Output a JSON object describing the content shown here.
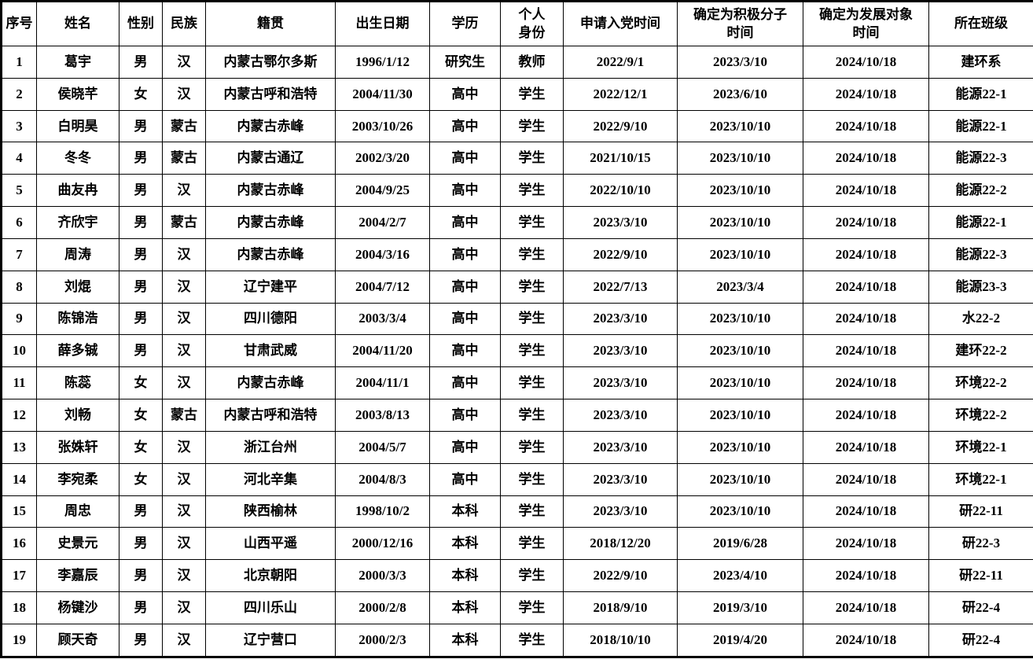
{
  "colors": {
    "background": "#ffffff",
    "text": "#000000",
    "border": "#000000"
  },
  "table": {
    "columns": [
      "序号",
      "姓名",
      "性别",
      "民族",
      "籍贯",
      "出生日期",
      "学历",
      "个人\n身份",
      "申请入党时间",
      "确定为积极分子\n时间",
      "确定为发展对象\n时间",
      "所在班级"
    ],
    "rows": [
      [
        "1",
        "葛宇",
        "男",
        "汉",
        "内蒙古鄂尔多斯",
        "1996/1/12",
        "研究生",
        "教师",
        "2022/9/1",
        "2023/3/10",
        "2024/10/18",
        "建环系"
      ],
      [
        "2",
        "侯晓芊",
        "女",
        "汉",
        "内蒙古呼和浩特",
        "2004/11/30",
        "高中",
        "学生",
        "2022/12/1",
        "2023/6/10",
        "2024/10/18",
        "能源22-1"
      ],
      [
        "3",
        "白明昊",
        "男",
        "蒙古",
        "内蒙古赤峰",
        "2003/10/26",
        "高中",
        "学生",
        "2022/9/10",
        "2023/10/10",
        "2024/10/18",
        "能源22-1"
      ],
      [
        "4",
        "冬冬",
        "男",
        "蒙古",
        "内蒙古通辽",
        "2002/3/20",
        "高中",
        "学生",
        "2021/10/15",
        "2023/10/10",
        "2024/10/18",
        "能源22-3"
      ],
      [
        "5",
        "曲友冉",
        "男",
        "汉",
        "内蒙古赤峰",
        "2004/9/25",
        "高中",
        "学生",
        "2022/10/10",
        "2023/10/10",
        "2024/10/18",
        "能源22-2"
      ],
      [
        "6",
        "齐欣宇",
        "男",
        "蒙古",
        "内蒙古赤峰",
        "2004/2/7",
        "高中",
        "学生",
        "2023/3/10",
        "2023/10/10",
        "2024/10/18",
        "能源22-1"
      ],
      [
        "7",
        "周涛",
        "男",
        "汉",
        "内蒙古赤峰",
        "2004/3/16",
        "高中",
        "学生",
        "2022/9/10",
        "2023/10/10",
        "2024/10/18",
        "能源22-3"
      ],
      [
        "8",
        "刘焜",
        "男",
        "汉",
        "辽宁建平",
        "2004/7/12",
        "高中",
        "学生",
        "2022/7/13",
        "2023/3/4",
        "2024/10/18",
        "能源23-3"
      ],
      [
        "9",
        "陈锦浩",
        "男",
        "汉",
        "四川德阳",
        "2003/3/4",
        "高中",
        "学生",
        "2023/3/10",
        "2023/10/10",
        "2024/10/18",
        "水22-2"
      ],
      [
        "10",
        "薛多铖",
        "男",
        "汉",
        "甘肃武威",
        "2004/11/20",
        "高中",
        "学生",
        "2023/3/10",
        "2023/10/10",
        "2024/10/18",
        "建环22-2"
      ],
      [
        "11",
        "陈蕊",
        "女",
        "汉",
        "内蒙古赤峰",
        "2004/11/1",
        "高中",
        "学生",
        "2023/3/10",
        "2023/10/10",
        "2024/10/18",
        "环境22-2"
      ],
      [
        "12",
        "刘畅",
        "女",
        "蒙古",
        "内蒙古呼和浩特",
        "2003/8/13",
        "高中",
        "学生",
        "2023/3/10",
        "2023/10/10",
        "2024/10/18",
        "环境22-2"
      ],
      [
        "13",
        "张姝轩",
        "女",
        "汉",
        "浙江台州",
        "2004/5/7",
        "高中",
        "学生",
        "2023/3/10",
        "2023/10/10",
        "2024/10/18",
        "环境22-1"
      ],
      [
        "14",
        "李宛柔",
        "女",
        "汉",
        "河北辛集",
        "2004/8/3",
        "高中",
        "学生",
        "2023/3/10",
        "2023/10/10",
        "2024/10/18",
        "环境22-1"
      ],
      [
        "15",
        "周忠",
        "男",
        "汉",
        "陕西榆林",
        "1998/10/2",
        "本科",
        "学生",
        "2023/3/10",
        "2023/10/10",
        "2024/10/18",
        "研22-11"
      ],
      [
        "16",
        "史景元",
        "男",
        "汉",
        "山西平遥",
        "2000/12/16",
        "本科",
        "学生",
        "2018/12/20",
        "2019/6/28",
        "2024/10/18",
        "研22-3"
      ],
      [
        "17",
        "李嘉辰",
        "男",
        "汉",
        "北京朝阳",
        "2000/3/3",
        "本科",
        "学生",
        "2022/9/10",
        "2023/4/10",
        "2024/10/18",
        "研22-11"
      ],
      [
        "18",
        "杨键沙",
        "男",
        "汉",
        "四川乐山",
        "2000/2/8",
        "本科",
        "学生",
        "2018/9/10",
        "2019/3/10",
        "2024/10/18",
        "研22-4"
      ],
      [
        "19",
        "顾天奇",
        "男",
        "汉",
        "辽宁营口",
        "2000/2/3",
        "本科",
        "学生",
        "2018/10/10",
        "2019/4/20",
        "2024/10/18",
        "研22-4"
      ]
    ]
  }
}
